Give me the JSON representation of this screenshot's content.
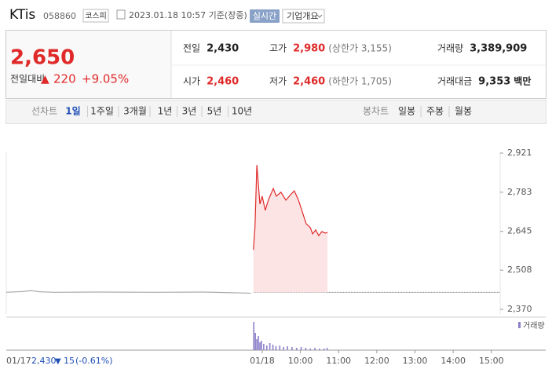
{
  "header": {
    "name": "KTis",
    "code": "058860",
    "market": "코스피",
    "timestamp": "2023.01.18 10:57 기준(장중)",
    "realtime": "실시간",
    "company": "기업개요"
  },
  "quote": {
    "price": "2,650",
    "change_label": "전일대비",
    "change_arrow": "▲",
    "change": "220",
    "change_pct": "+9.05%"
  },
  "stats": [
    {
      "label": "전일",
      "value": "2,430",
      "color": "#222222"
    },
    {
      "label": "고가",
      "value": "2,980",
      "note": "(상한가 3,155)",
      "color": "#e02a2a"
    },
    {
      "label": "거래량",
      "value": "3,389,909",
      "color": "#222222"
    },
    {
      "label": "시가",
      "value": "2,460",
      "color": "#e02a2a"
    },
    {
      "label": "저가",
      "value": "2,460",
      "note": "(하한가 1,705)",
      "color": "#e02a2a"
    },
    {
      "label": "거래대금",
      "value": "9,353",
      "unit": "백만",
      "color": "#222222"
    }
  ],
  "tabs": {
    "line_label": "선차트",
    "line_periods": [
      "1일",
      "1주일",
      "3개월",
      "1년",
      "3년",
      "5년",
      "10년"
    ],
    "selected": "1일",
    "candle_label": "봉차트",
    "candle_periods": [
      "일봉",
      "주봉",
      "월봉"
    ]
  },
  "footer": {
    "date": "01/17",
    "close": "2,430",
    "arrow": "▼",
    "change": "15",
    "pct": "(-0.61%)"
  },
  "chart_data": [
    {
      "type": "line",
      "xlim": [
        -6.7,
        6.23
      ],
      "ylim": [
        2370,
        2921
      ],
      "yticks": [
        {
          "value": 2921,
          "label": "2,921"
        },
        {
          "value": 2783,
          "label": "2,783"
        },
        {
          "value": 2645,
          "label": "2,645"
        },
        {
          "value": 2508,
          "label": "2,508"
        },
        {
          "value": 2370,
          "label": "2,370"
        }
      ],
      "xticks": [
        {
          "value": 0,
          "label": "01/18"
        },
        {
          "value": 1,
          "label": "10:00"
        },
        {
          "value": 2,
          "label": "11:00"
        },
        {
          "value": 3,
          "label": "12:00"
        },
        {
          "value": 4,
          "label": "13:00"
        },
        {
          "value": 5,
          "label": "14:00"
        },
        {
          "value": 6,
          "label": "15:00"
        }
      ],
      "baseline": 2430,
      "series": [
        {
          "color": "#aaaaaa",
          "x": [
            -6.7,
            -6.26,
            -6.05,
            -5.84,
            -5.43,
            -4.4,
            -2.76,
            -1.52,
            -0.29
          ],
          "values": [
            2430,
            2433,
            2436,
            2432,
            2430,
            2431,
            2430,
            2431,
            2427
          ]
        },
        {
          "color": "#e02a2a",
          "fill": "#fde4e4",
          "x": [
            -0.23,
            -0.19,
            -0.14,
            -0.1,
            -0.06,
            0,
            0.08,
            0.16,
            0.29,
            0.37,
            0.49,
            0.62,
            0.74,
            0.84,
            0.95,
            1.05,
            1.15,
            1.26,
            1.32,
            1.4,
            1.48,
            1.56,
            1.65,
            1.71
          ],
          "values": [
            2580,
            2658,
            2879,
            2810,
            2741,
            2769,
            2719,
            2755,
            2796,
            2769,
            2783,
            2755,
            2774,
            2788,
            2755,
            2714,
            2672,
            2658,
            2636,
            2650,
            2630,
            2644,
            2639,
            2641
          ]
        }
      ]
    },
    {
      "type": "bar",
      "legend": "거래량",
      "color": "#8d80c9",
      "xlim": [
        -6.7,
        6.23
      ],
      "ylim": [
        0,
        40
      ],
      "x": [
        -0.22,
        -0.18,
        -0.14,
        -0.1,
        -0.06,
        -0.02,
        0.04,
        0.12,
        0.2,
        0.28,
        0.36,
        0.46,
        0.56,
        0.66,
        0.78,
        0.9,
        1.02,
        1.14,
        1.26,
        1.38,
        1.5,
        1.62,
        1.7
      ],
      "values": [
        36,
        22,
        14,
        18,
        10,
        12,
        8,
        6,
        9,
        7,
        5,
        6,
        4,
        5,
        4,
        3,
        4,
        3,
        2,
        3,
        2,
        2,
        3
      ]
    }
  ]
}
